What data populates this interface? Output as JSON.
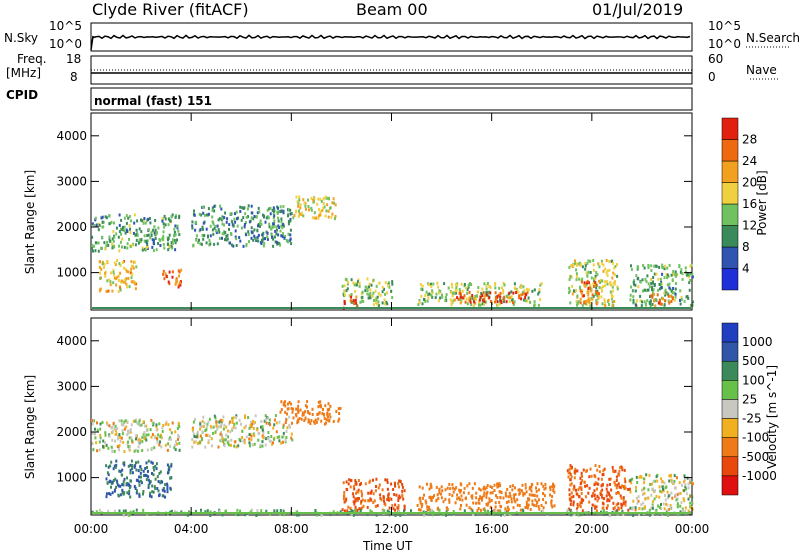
{
  "header": {
    "station": "Clyde River (fitACF)",
    "beam": "Beam 00",
    "date": "01/Jul/2019"
  },
  "panels": {
    "nsky": {
      "label": "N.Sky",
      "left_ticks": [
        "10^5",
        "10^0"
      ],
      "right_ticks": [
        "10^5",
        "10^0"
      ],
      "right_label": "N.Search"
    },
    "freq": {
      "label_line1": "Freq.",
      "label_line2": "[MHz]",
      "left_ticks": [
        "18",
        "8"
      ],
      "right_ticks": [
        "60",
        "0"
      ],
      "right_label": "Nave"
    },
    "cpid": {
      "label": "CPID",
      "value": "normal (fast) 151"
    }
  },
  "colors": {
    "power": [
      "#1f2fd8",
      "#2f55b0",
      "#3a8a5a",
      "#6fc25f",
      "#f0d040",
      "#f2a020",
      "#ee6a10",
      "#e22010"
    ],
    "velocity": [
      "#1f3fc0",
      "#2f56a8",
      "#3c8a5a",
      "#66c04a",
      "#c8c8c0",
      "#f0b020",
      "#ee7a18",
      "#e8480c",
      "#e01010"
    ]
  },
  "chart_data": [
    {
      "type": "heatmap",
      "title": "",
      "xlabel": "Time UT",
      "ylabel": "Slant Range [km]",
      "xlim": [
        0,
        24
      ],
      "ylim": [
        180,
        4500
      ],
      "x_ticks": [
        "00:00",
        "04:00",
        "08:00",
        "12:00",
        "16:00",
        "20:00",
        "00:00"
      ],
      "y_ticks": [
        1000,
        2000,
        3000,
        4000
      ],
      "colorbar": {
        "label": "Power [dB]",
        "ticks": [
          4,
          8,
          12,
          16,
          20,
          24,
          28
        ],
        "range": [
          0,
          32
        ]
      },
      "regions": [
        {
          "t": [
            0.0,
            3.5
          ],
          "r": [
            1500,
            2300
          ],
          "value": 12
        },
        {
          "t": [
            0.3,
            1.8
          ],
          "r": [
            600,
            1300
          ],
          "value": 20
        },
        {
          "t": [
            2.8,
            3.6
          ],
          "r": [
            700,
            1100
          ],
          "value": 26
        },
        {
          "t": [
            4.0,
            8.0
          ],
          "r": [
            1600,
            2500
          ],
          "value": 10
        },
        {
          "t": [
            8.0,
            9.8
          ],
          "r": [
            2200,
            2700
          ],
          "value": 18
        },
        {
          "t": [
            10.0,
            12.0
          ],
          "r": [
            300,
            900
          ],
          "value": 14
        },
        {
          "t": [
            10.0,
            10.6
          ],
          "r": [
            250,
            500
          ],
          "value": 27
        },
        {
          "t": [
            13.0,
            18.0
          ],
          "r": [
            300,
            800
          ],
          "value": 15
        },
        {
          "t": [
            14.5,
            17.5
          ],
          "r": [
            350,
            600
          ],
          "value": 28
        },
        {
          "t": [
            19.0,
            21.0
          ],
          "r": [
            300,
            1300
          ],
          "value": 16
        },
        {
          "t": [
            19.5,
            20.3
          ],
          "r": [
            350,
            900
          ],
          "value": 25
        },
        {
          "t": [
            21.5,
            24.0
          ],
          "r": [
            300,
            1200
          ],
          "value": 12
        },
        {
          "t": [
            22.3,
            23.2
          ],
          "r": [
            300,
            600
          ],
          "value": 24
        }
      ]
    },
    {
      "type": "heatmap",
      "title": "",
      "xlabel": "Time UT",
      "ylabel": "Slant Range [km]",
      "xlim": [
        0,
        24
      ],
      "ylim": [
        180,
        4500
      ],
      "x_ticks": [
        "00:00",
        "04:00",
        "08:00",
        "12:00",
        "16:00",
        "20:00",
        "00:00"
      ],
      "y_ticks": [
        1000,
        2000,
        3000,
        4000
      ],
      "colorbar": {
        "label": "Velocity [m s^-1]",
        "ticks": [
          1000,
          500,
          100,
          25,
          -25,
          -100,
          -500,
          -1000
        ]
      },
      "regions": [
        {
          "t": [
            0.0,
            3.5
          ],
          "r": [
            1600,
            2300
          ],
          "value": 0
        },
        {
          "t": [
            0.5,
            3.2
          ],
          "r": [
            600,
            1400
          ],
          "value": 300
        },
        {
          "t": [
            4.0,
            8.0
          ],
          "r": [
            1700,
            2400
          ],
          "value": 0
        },
        {
          "t": [
            7.5,
            10.0
          ],
          "r": [
            2200,
            2700
          ],
          "value": -200
        },
        {
          "t": [
            10.0,
            12.5
          ],
          "r": [
            300,
            1000
          ],
          "value": -300
        },
        {
          "t": [
            13.0,
            18.5
          ],
          "r": [
            300,
            900
          ],
          "value": -200
        },
        {
          "t": [
            19.0,
            21.5
          ],
          "r": [
            300,
            1300
          ],
          "value": -300
        },
        {
          "t": [
            21.5,
            24.0
          ],
          "r": [
            300,
            1100
          ],
          "value": 0
        },
        {
          "t": [
            0.0,
            24.0
          ],
          "r": [
            200,
            320
          ],
          "value": 60
        }
      ]
    }
  ]
}
